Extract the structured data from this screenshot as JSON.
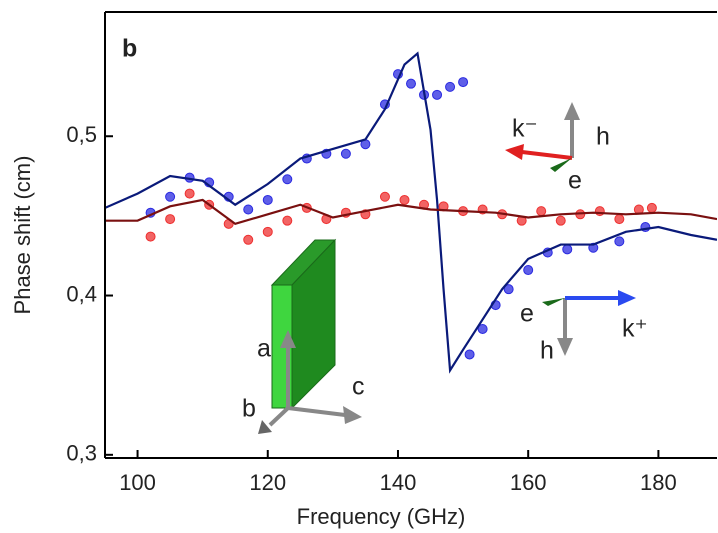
{
  "chart_data": {
    "type": "scatter",
    "xlabel": "Frequency (GHz)",
    "ylabel": "Phase shift (cm)",
    "xlim": [
      95,
      189
    ],
    "ylim": [
      0.298,
      0.578
    ],
    "xticks": [
      100,
      120,
      140,
      160,
      180
    ],
    "yticks": [
      {
        "value": 0.3,
        "label": "0,3"
      },
      {
        "value": 0.4,
        "label": "0,4"
      },
      {
        "value": 0.5,
        "label": "0,5"
      }
    ],
    "grid": false,
    "annotations": [
      "b",
      "k⁻",
      "h",
      "e",
      "e",
      "k⁺",
      "h",
      "a",
      "b",
      "c"
    ],
    "series": [
      {
        "type": "scatter",
        "color": "#2a2ae0",
        "x": [
          102,
          105,
          108,
          111,
          114,
          117,
          120,
          123,
          126,
          129,
          132,
          135,
          138,
          140,
          142,
          144,
          146,
          148,
          150,
          151,
          153,
          155,
          157,
          160,
          163,
          166,
          170,
          174,
          178
        ],
        "values": [
          0.452,
          0.462,
          0.474,
          0.471,
          0.462,
          0.454,
          0.46,
          0.473,
          0.486,
          0.489,
          0.489,
          0.495,
          0.52,
          0.539,
          0.533,
          0.526,
          0.526,
          0.531,
          0.534,
          0.363,
          0.379,
          0.394,
          0.404,
          0.416,
          0.427,
          0.429,
          0.43,
          0.434,
          0.443
        ]
      },
      {
        "type": "scatter",
        "color": "#ee3030",
        "x": [
          102,
          105,
          108,
          111,
          114,
          117,
          120,
          123,
          126,
          129,
          132,
          135,
          138,
          141,
          144,
          147,
          150,
          153,
          156,
          159,
          162,
          165,
          168,
          171,
          174,
          177,
          179
        ],
        "values": [
          0.437,
          0.448,
          0.464,
          0.457,
          0.445,
          0.435,
          0.44,
          0.447,
          0.455,
          0.448,
          0.452,
          0.451,
          0.462,
          0.46,
          0.457,
          0.456,
          0.453,
          0.454,
          0.451,
          0.447,
          0.453,
          0.447,
          0.451,
          0.453,
          0.448,
          0.454,
          0.455
        ]
      },
      {
        "type": "line",
        "color": "#0a1a7a",
        "x": [
          95,
          100,
          105,
          110,
          115,
          120,
          125,
          130,
          135,
          138,
          141,
          143,
          145,
          146,
          147,
          148,
          150,
          153,
          156,
          160,
          165,
          170,
          175,
          180,
          185,
          189
        ],
        "values": [
          0.455,
          0.464,
          0.475,
          0.472,
          0.457,
          0.47,
          0.486,
          0.492,
          0.498,
          0.517,
          0.545,
          0.552,
          0.504,
          0.46,
          0.404,
          0.353,
          0.366,
          0.385,
          0.404,
          0.423,
          0.432,
          0.432,
          0.44,
          0.443,
          0.438,
          0.435
        ]
      },
      {
        "type": "line",
        "color": "#7a1010",
        "x": [
          95,
          100,
          105,
          110,
          115,
          120,
          125,
          130,
          135,
          140,
          145,
          150,
          155,
          160,
          165,
          170,
          175,
          180,
          185,
          189
        ],
        "values": [
          0.447,
          0.447,
          0.456,
          0.46,
          0.445,
          0.451,
          0.457,
          0.449,
          0.453,
          0.457,
          0.454,
          0.453,
          0.452,
          0.449,
          0.451,
          0.452,
          0.451,
          0.452,
          0.451,
          0.448
        ]
      }
    ]
  }
}
